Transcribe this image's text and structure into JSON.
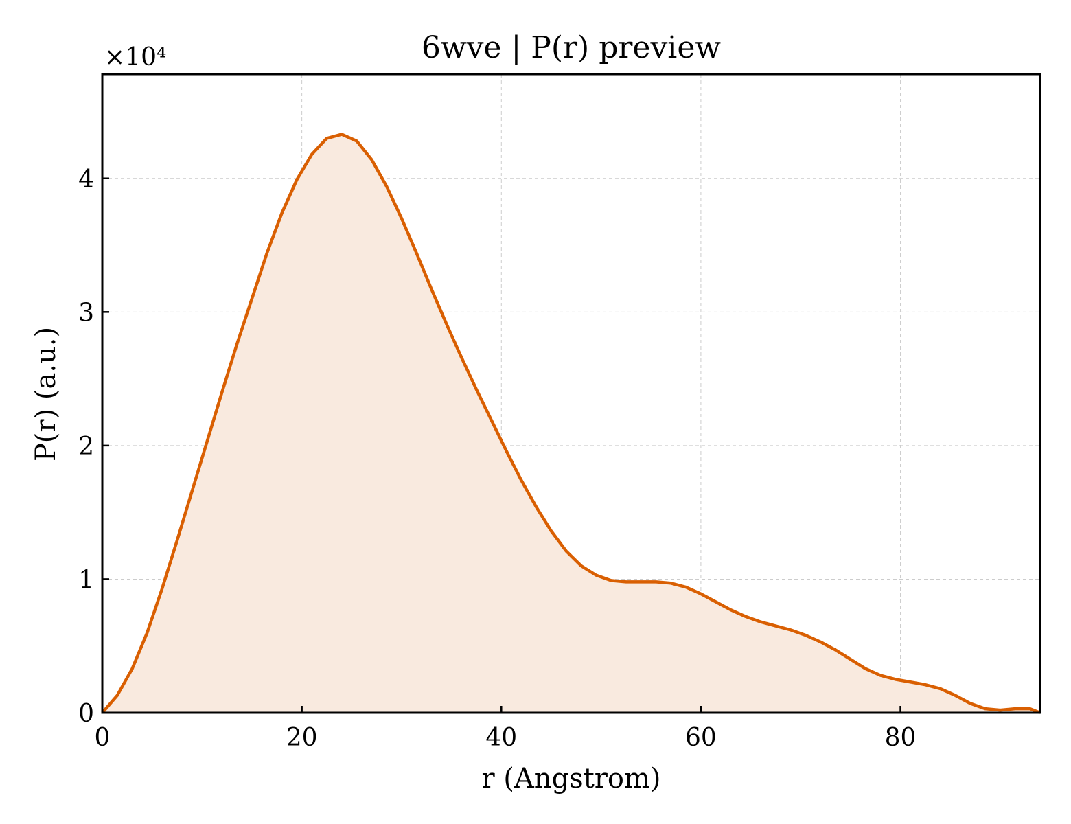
{
  "chart_data": {
    "type": "area",
    "title": "6wve | P(r) preview",
    "xlabel": "r (Angstrom)",
    "ylabel": "P(r) (a.u.)",
    "y_offset_label": "×10⁴",
    "y_scale": 10000,
    "xlim": [
      0,
      94
    ],
    "ylim": [
      0,
      4.78
    ],
    "x_ticks": [
      0,
      20,
      40,
      60,
      80
    ],
    "x_tick_labels": [
      "0",
      "20",
      "40",
      "60",
      "80"
    ],
    "y_ticks": [
      0,
      1,
      2,
      3,
      4
    ],
    "y_tick_labels": [
      "0",
      "1",
      "2",
      "3",
      "4"
    ],
    "grid": true,
    "line_color": "#d95f02",
    "fill_color": "#f9eadf",
    "series": [
      {
        "x": [
          0,
          1.5,
          3,
          4.5,
          6,
          7.5,
          9,
          10.5,
          12,
          13.5,
          15,
          16.5,
          18,
          19.5,
          21,
          22.5,
          24,
          25.5,
          27,
          28.5,
          30,
          31.5,
          33,
          34.5,
          36,
          37.5,
          39,
          40.5,
          42,
          43.5,
          45,
          46.5,
          48,
          49.5,
          51,
          52.5,
          54,
          55.5,
          57,
          58.5,
          60,
          61.5,
          63,
          64.5,
          66,
          67.5,
          69,
          70.5,
          72,
          73.5,
          75,
          76.5,
          78,
          79.5,
          81,
          82.5,
          84,
          85.5,
          87,
          88.5,
          90,
          91.5,
          93,
          94
        ],
        "y": [
          0,
          0.13,
          0.33,
          0.6,
          0.93,
          1.29,
          1.66,
          2.03,
          2.4,
          2.76,
          3.1,
          3.44,
          3.74,
          3.99,
          4.18,
          4.3,
          4.33,
          4.28,
          4.14,
          3.94,
          3.7,
          3.44,
          3.17,
          2.91,
          2.66,
          2.42,
          2.19,
          1.96,
          1.74,
          1.54,
          1.36,
          1.21,
          1.1,
          1.03,
          0.99,
          0.98,
          0.98,
          0.98,
          0.97,
          0.94,
          0.89,
          0.83,
          0.77,
          0.72,
          0.68,
          0.65,
          0.62,
          0.58,
          0.53,
          0.47,
          0.4,
          0.33,
          0.28,
          0.25,
          0.23,
          0.21,
          0.18,
          0.13,
          0.07,
          0.03,
          0.02,
          0.03,
          0.03,
          0.0
        ]
      }
    ]
  }
}
